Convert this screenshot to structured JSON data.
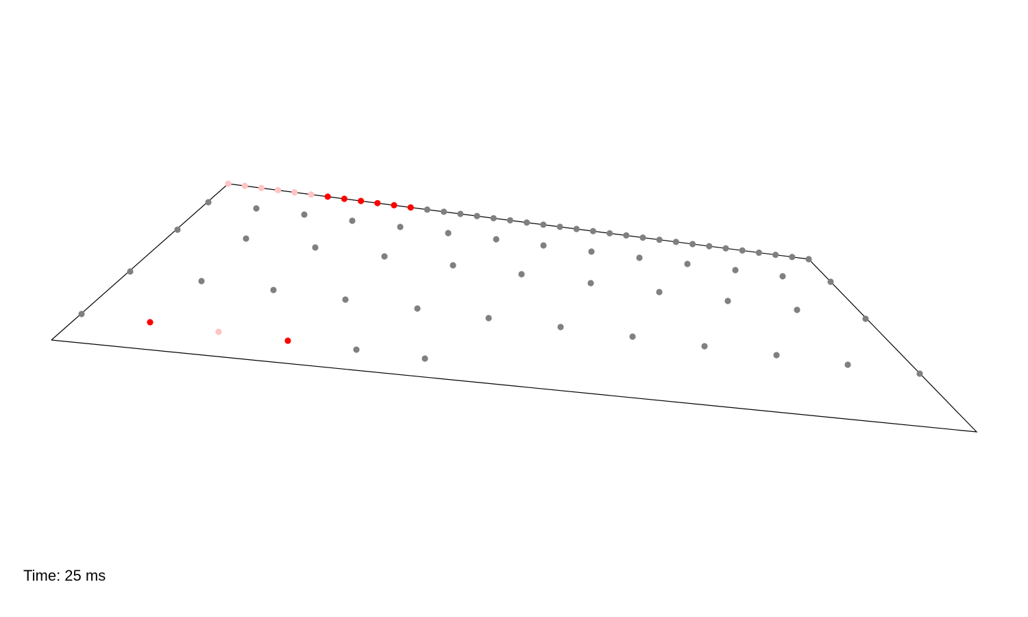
{
  "time_label": "Time: 25 ms",
  "colors": {
    "background": "#ffffff",
    "outline": "#000000",
    "inactive": "#808080",
    "active": "#ff0000",
    "fading": "#ffc4c4"
  },
  "states": [
    "inactive",
    "active",
    "fading"
  ]
}
